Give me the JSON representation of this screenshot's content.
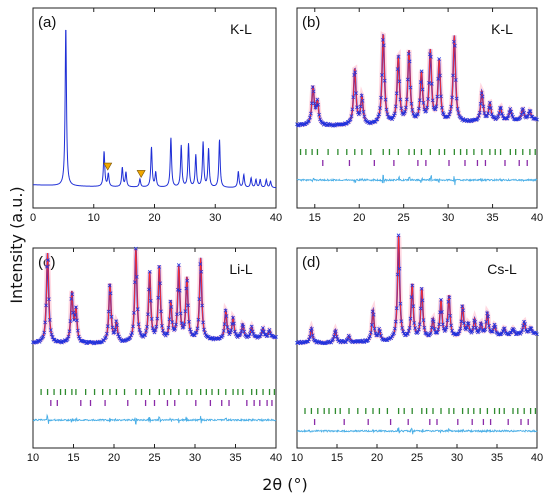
{
  "figure": {
    "ylabel": "Intensity (a.u.)",
    "xlabel": "2θ (°)"
  },
  "colors": {
    "pattern": "#1f2fd6",
    "observed": "#2233dd",
    "calculated": "#ff2b2b",
    "difference": "#49aee6",
    "bragg_primary": "#2e8b2e",
    "bragg_secondary": "#8a2aa8",
    "marker": "#f0a800"
  },
  "chart_data": [
    {
      "type": "line",
      "panel": "(a)",
      "sample": "K-L",
      "xlim": [
        0,
        40
      ],
      "xticks": [
        "0",
        "10",
        "20",
        "30",
        "40"
      ],
      "grid": false,
      "markers": {
        "symbol": "▼",
        "x": [
          12.3,
          17.8
        ]
      },
      "peaks_x": [
        5.4,
        11.7,
        12.4,
        14.7,
        15.3,
        17.6,
        19.5,
        20.2,
        22.7,
        24.4,
        25.6,
        26.8,
        28.0,
        28.9,
        30.7,
        33.8,
        34.7,
        35.9,
        36.7,
        37.4,
        38.4,
        39.1
      ],
      "peaks_rel_intensity": [
        1.0,
        0.22,
        0.08,
        0.12,
        0.09,
        0.05,
        0.25,
        0.09,
        0.31,
        0.26,
        0.27,
        0.2,
        0.28,
        0.24,
        0.3,
        0.1,
        0.08,
        0.06,
        0.05,
        0.05,
        0.05,
        0.04
      ]
    },
    {
      "type": "scatter",
      "panel": "(b)",
      "sample": "K-L",
      "xlim": [
        13,
        40
      ],
      "xticks": [
        "15",
        "20",
        "25",
        "30",
        "35",
        "40"
      ],
      "grid": false,
      "peaks_x": [
        14.8,
        15.3,
        19.5,
        20.3,
        22.7,
        24.4,
        25.6,
        27.0,
        28.0,
        29.0,
        30.7,
        33.8,
        34.7,
        35.9,
        37.0,
        38.4,
        39.2
      ],
      "peaks_rel_intensity": [
        0.42,
        0.25,
        0.62,
        0.3,
        1.0,
        0.74,
        0.8,
        0.55,
        0.79,
        0.68,
        0.96,
        0.33,
        0.2,
        0.15,
        0.12,
        0.12,
        0.1
      ],
      "bragg_primary_x": [
        13.4,
        14.0,
        14.7,
        15.3,
        16.5,
        17.6,
        18.6,
        19.5,
        20.3,
        21.3,
        22.7,
        23.4,
        24.4,
        25.6,
        26.2,
        27.0,
        28.0,
        29.0,
        29.6,
        30.7,
        31.4,
        32.1,
        32.9,
        33.8,
        34.7,
        35.3,
        35.9,
        37.0,
        37.6,
        38.4,
        39.2,
        39.8
      ],
      "bragg_secondary_x": [
        15.9,
        18.9,
        21.7,
        23.9,
        26.6,
        27.5,
        30.1,
        31.9,
        33.3,
        34.2,
        36.4,
        38.0,
        38.9
      ]
    },
    {
      "type": "scatter",
      "panel": "(c)",
      "sample": "Li-L",
      "xlim": [
        10,
        40
      ],
      "xticks": [
        "10",
        "15",
        "20",
        "25",
        "30",
        "35",
        "40"
      ],
      "grid": false,
      "peaks_x": [
        11.8,
        14.8,
        15.3,
        19.5,
        20.3,
        22.7,
        24.4,
        25.6,
        27.0,
        28.0,
        29.0,
        30.7,
        33.8,
        34.7,
        35.9,
        37.0,
        38.4,
        39.2
      ],
      "peaks_rel_intensity": [
        0.95,
        0.52,
        0.34,
        0.62,
        0.2,
        0.98,
        0.72,
        0.78,
        0.4,
        0.76,
        0.65,
        0.86,
        0.3,
        0.22,
        0.15,
        0.12,
        0.1,
        0.08
      ],
      "bragg_primary_x": [
        11.0,
        11.8,
        12.6,
        13.4,
        14.0,
        14.8,
        15.3,
        16.5,
        17.6,
        18.6,
        19.5,
        20.3,
        21.3,
        22.7,
        23.4,
        24.4,
        25.6,
        26.2,
        27.0,
        28.0,
        29.0,
        29.6,
        30.7,
        31.4,
        32.1,
        32.9,
        33.8,
        34.7,
        35.3,
        35.9,
        37.0,
        37.6,
        38.4,
        39.2,
        39.8
      ],
      "bragg_secondary_x": [
        12.2,
        13.0,
        15.9,
        17.1,
        18.9,
        21.7,
        23.9,
        25.0,
        26.6,
        27.5,
        30.1,
        31.9,
        33.3,
        34.2,
        36.4,
        37.3,
        38.0,
        38.9,
        39.5
      ]
    },
    {
      "type": "scatter",
      "panel": "(d)",
      "sample": "Cs-L",
      "xlim": [
        10,
        40
      ],
      "xticks": [
        "10",
        "15",
        "20",
        "25",
        "30",
        "35",
        "40"
      ],
      "grid": false,
      "peaks_x": [
        11.8,
        14.8,
        16.5,
        19.5,
        20.3,
        22.7,
        24.4,
        25.6,
        27.0,
        28.0,
        29.0,
        30.7,
        31.4,
        32.2,
        33.0,
        33.8,
        34.7,
        35.9,
        37.0,
        38.4,
        39.2
      ],
      "peaks_rel_intensity": [
        0.14,
        0.12,
        0.06,
        0.3,
        0.1,
        1.0,
        0.52,
        0.48,
        0.18,
        0.36,
        0.4,
        0.3,
        0.12,
        0.16,
        0.12,
        0.22,
        0.1,
        0.07,
        0.06,
        0.12,
        0.06
      ],
      "bragg_primary_x": [
        11.0,
        11.8,
        12.6,
        13.4,
        14.0,
        14.8,
        15.4,
        16.5,
        17.6,
        18.6,
        19.5,
        20.3,
        21.3,
        22.7,
        23.4,
        24.4,
        25.6,
        26.2,
        27.0,
        28.0,
        29.0,
        29.6,
        30.7,
        31.4,
        32.1,
        32.9,
        33.8,
        34.7,
        35.3,
        35.9,
        37.0,
        37.6,
        38.4,
        39.2,
        39.8
      ],
      "bragg_secondary_x": [
        12.2,
        15.9,
        18.9,
        21.7,
        23.9,
        26.6,
        27.5,
        30.1,
        31.9,
        33.3,
        34.2,
        36.4,
        38.0,
        38.9
      ]
    }
  ]
}
